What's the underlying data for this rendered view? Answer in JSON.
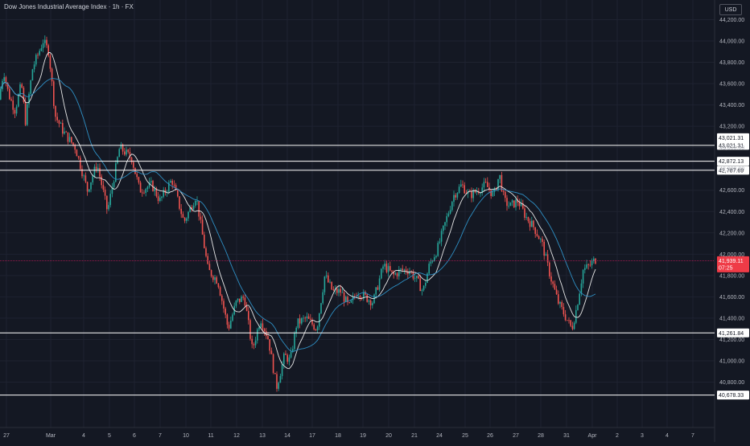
{
  "header": {
    "title": "Dow Jones Industrial Average Index · 1h · FX",
    "currency": "USD"
  },
  "colors": {
    "background": "#141823",
    "up": "#26a69a",
    "down": "#ef5350",
    "ma_fast": "#e6e6e6",
    "ma_slow": "#2e8fc4",
    "level_line": "#ffffff",
    "price_line": "#c2185b"
  },
  "chart_data": {
    "type": "candlestick",
    "yaxis": {
      "min": 40650,
      "max": 44350,
      "ticks": [
        40800,
        41000,
        41200,
        41400,
        41600,
        41800,
        42000,
        42200,
        42400,
        42600,
        42800,
        43000,
        43200,
        43400,
        43600,
        43800,
        44000,
        44200
      ],
      "tick_labels": [
        "40,800.00",
        "41,000.00",
        "41,200.00",
        "41,400.00",
        "41,600.00",
        "41,800.00",
        "42,000.00",
        "42,200.00",
        "42,400.00",
        "42,600.00",
        "42,800.00",
        "43,000.00",
        "43,200.00",
        "43,400.00",
        "43,600.00",
        "43,800.00",
        "44,000.00",
        "44,200.00"
      ]
    },
    "xaxis": {
      "labels": [
        "27",
        "Mar",
        "4",
        "5",
        "6",
        "7",
        "10",
        "11",
        "12",
        "13",
        "14",
        "17",
        "18",
        "19",
        "20",
        "21",
        "24",
        "25",
        "26",
        "27",
        "28",
        "31",
        "Apr",
        "2",
        "3",
        "4",
        "7"
      ]
    },
    "levels": [
      {
        "price": 43021.31,
        "label": "43,021.31"
      },
      {
        "price": 42872.13,
        "label": "42,872.13"
      },
      {
        "price": 42787.69,
        "label": "42,787.69"
      },
      {
        "price": 41261.84,
        "label": "41,261.84"
      },
      {
        "price": 40678.33,
        "label": "40,678.33"
      }
    ],
    "level_label_above": {
      "price": 43100,
      "label": "43,021.31"
    },
    "current": {
      "price": 41939.11,
      "label": "41,939.11",
      "countdown": "07:25"
    },
    "keypoints": [
      [
        0,
        43450
      ],
      [
        6,
        43720
      ],
      [
        12,
        43500
      ],
      [
        20,
        43350
      ],
      [
        28,
        43600
      ],
      [
        33,
        43250
      ],
      [
        42,
        43750
      ],
      [
        50,
        43900
      ],
      [
        55,
        44000
      ],
      [
        62,
        43900
      ],
      [
        70,
        43300
      ],
      [
        80,
        43150
      ],
      [
        95,
        43000
      ],
      [
        110,
        42600
      ],
      [
        122,
        42850
      ],
      [
        135,
        42400
      ],
      [
        150,
        43000
      ],
      [
        165,
        42900
      ],
      [
        175,
        42600
      ],
      [
        190,
        42650
      ],
      [
        200,
        42500
      ],
      [
        215,
        42700
      ],
      [
        230,
        42300
      ],
      [
        245,
        42550
      ],
      [
        260,
        41850
      ],
      [
        272,
        41750
      ],
      [
        285,
        41300
      ],
      [
        295,
        41550
      ],
      [
        305,
        41600
      ],
      [
        315,
        41100
      ],
      [
        325,
        41400
      ],
      [
        335,
        41200
      ],
      [
        345,
        40750
      ],
      [
        355,
        41050
      ],
      [
        362,
        41000
      ],
      [
        370,
        41350
      ],
      [
        382,
        41400
      ],
      [
        395,
        41300
      ],
      [
        405,
        41800
      ],
      [
        415,
        41650
      ],
      [
        425,
        41650
      ],
      [
        435,
        41500
      ],
      [
        445,
        41650
      ],
      [
        455,
        41600
      ],
      [
        465,
        41550
      ],
      [
        478,
        41900
      ],
      [
        490,
        41800
      ],
      [
        500,
        41850
      ],
      [
        510,
        41850
      ],
      [
        520,
        41750
      ],
      [
        527,
        41650
      ],
      [
        535,
        41900
      ],
      [
        545,
        42050
      ],
      [
        555,
        42300
      ],
      [
        565,
        42550
      ],
      [
        575,
        42650
      ],
      [
        585,
        42550
      ],
      [
        595,
        42600
      ],
      [
        605,
        42650
      ],
      [
        615,
        42550
      ],
      [
        622,
        42750
      ],
      [
        628,
        42500
      ],
      [
        635,
        42450
      ],
      [
        645,
        42500
      ],
      [
        655,
        42350
      ],
      [
        665,
        42250
      ],
      [
        675,
        42100
      ],
      [
        685,
        41800
      ],
      [
        695,
        41550
      ],
      [
        705,
        41400
      ],
      [
        712,
        41300
      ],
      [
        718,
        41500
      ],
      [
        726,
        41850
      ],
      [
        735,
        41900
      ],
      [
        741,
        41950
      ]
    ]
  }
}
